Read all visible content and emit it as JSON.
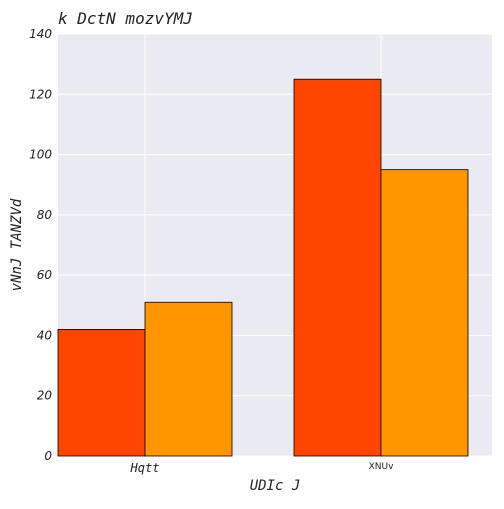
{
  "chart_data": {
    "type": "bar",
    "title": "k DctN mozvYMJ",
    "xlabel": "UDIc J",
    "ylabel": "vNnJ TANZVd",
    "categories": [
      "Hqtt",
      "XNUv"
    ],
    "series": [
      {
        "values": [
          42,
          125
        ],
        "color": "#ff4500"
      },
      {
        "values": [
          51,
          95
        ],
        "color": "#ff9500"
      }
    ],
    "ylim": [
      0,
      140
    ],
    "yticks": [
      0,
      20,
      40,
      60,
      80,
      100,
      120,
      140
    ],
    "grid": true,
    "background": "#eaeaf2",
    "legend": "none"
  }
}
